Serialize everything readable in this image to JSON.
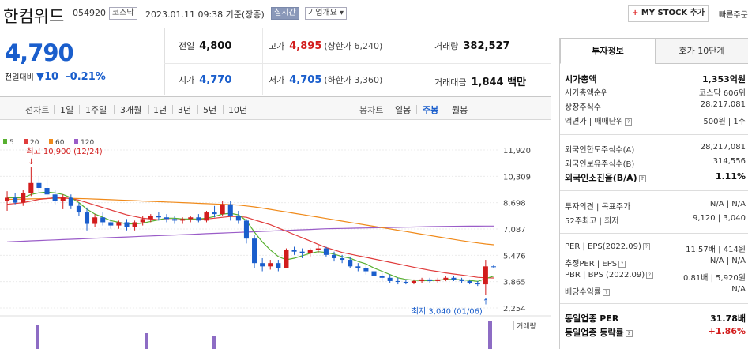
{
  "header": {
    "name": "한컴위드",
    "code": "054920",
    "market": "코스닥",
    "datetime": "2023.01.11 09:38 기준(장중)",
    "live": "실시간",
    "corp_info": "기업개요",
    "mystock": "MY STOCK 추가",
    "mystock_plus": "+",
    "quick": "빠른주문"
  },
  "summary": {
    "price": "4,790",
    "change_label": "전일대비",
    "change_amount": "10",
    "change_pct": "-0.21%",
    "prev_label": "전일",
    "prev": "4,800",
    "high_label": "고가",
    "high": "4,895",
    "upper_limit": "(상한가 6,240)",
    "volume_label": "거래량",
    "volume": "382,527",
    "open_label": "시가",
    "open": "4,770",
    "low_label": "저가",
    "low": "4,705",
    "lower_limit": "(하한가 3,360)",
    "amount_label": "거래대금",
    "amount": "1,844 백만"
  },
  "periods": {
    "label": "선차트",
    "items": [
      "1일",
      "1주일",
      "3개월",
      "1년",
      "3년",
      "5년",
      "10년"
    ],
    "candle_label": "봉차트",
    "candles": [
      "일봉",
      "주봉",
      "월봉"
    ],
    "candle_selected": "주봉"
  },
  "colors": {
    "up": "#d21c1c",
    "down": "#1a5ecc",
    "ma5": "#58b030",
    "ma20": "#e03c3c",
    "ma60": "#f08a1a",
    "ma120": "#9a5cc8"
  },
  "chart_data": {
    "type": "candlestick",
    "interval": "weekly",
    "legend": [
      "5",
      "20",
      "60",
      "120"
    ],
    "y_ticks": [
      11920,
      10309,
      8698,
      7087,
      5476,
      3865,
      2254
    ],
    "ylim": [
      2254,
      11920
    ],
    "annotations": {
      "high_label": "최고 10,900 (12/24)",
      "low_label": "최저 3,040 (01/06)"
    },
    "volume_label": "거래량",
    "candles": [
      [
        8800,
        9400,
        8200,
        9000
      ],
      [
        9000,
        9300,
        8600,
        8700
      ],
      [
        8700,
        9500,
        8500,
        9300
      ],
      [
        9300,
        10900,
        9100,
        9900
      ],
      [
        9900,
        10300,
        9300,
        9600
      ],
      [
        9600,
        10100,
        9000,
        9200
      ],
      [
        9200,
        9500,
        8600,
        8800
      ],
      [
        8800,
        9200,
        8300,
        9000
      ],
      [
        9000,
        9200,
        8300,
        8500
      ],
      [
        8500,
        8700,
        7900,
        8100
      ],
      [
        8100,
        8400,
        7000,
        7400
      ],
      [
        7400,
        8000,
        7200,
        7800
      ],
      [
        7800,
        8100,
        7300,
        7500
      ],
      [
        7500,
        7700,
        7100,
        7300
      ],
      [
        7300,
        7600,
        7100,
        7500
      ],
      [
        7500,
        7700,
        7000,
        7200
      ],
      [
        7200,
        7600,
        7000,
        7500
      ],
      [
        7500,
        7900,
        7300,
        7700
      ],
      [
        7700,
        8000,
        7500,
        7900
      ],
      [
        7900,
        8100,
        7600,
        7800
      ],
      [
        7800,
        8000,
        7500,
        7700
      ],
      [
        7700,
        7900,
        7400,
        7600
      ],
      [
        7600,
        7800,
        7400,
        7700
      ],
      [
        7700,
        7900,
        7500,
        7800
      ],
      [
        7800,
        8000,
        7500,
        7600
      ],
      [
        7600,
        8200,
        7500,
        8100
      ],
      [
        8100,
        8500,
        7800,
        8000
      ],
      [
        8000,
        8800,
        7900,
        8600
      ],
      [
        8600,
        8800,
        7600,
        7900
      ],
      [
        7900,
        8200,
        7400,
        7600
      ],
      [
        7600,
        7700,
        6200,
        6500
      ],
      [
        6500,
        6700,
        4700,
        5000
      ],
      [
        5000,
        5300,
        4500,
        4800
      ],
      [
        4800,
        5200,
        4600,
        5000
      ],
      [
        5000,
        5200,
        4500,
        4700
      ],
      [
        4700,
        5900,
        4700,
        5800
      ],
      [
        5800,
        6000,
        5500,
        5700
      ],
      [
        5700,
        5900,
        5300,
        5600
      ],
      [
        5600,
        5900,
        5400,
        5800
      ],
      [
        5800,
        6100,
        5600,
        5900
      ],
      [
        5900,
        6000,
        5400,
        5500
      ],
      [
        5500,
        5700,
        5100,
        5300
      ],
      [
        5300,
        5500,
        5000,
        5200
      ],
      [
        5200,
        5400,
        4700,
        4800
      ],
      [
        4800,
        5000,
        4500,
        4700
      ],
      [
        4700,
        4900,
        4300,
        4500
      ],
      [
        4500,
        4600,
        4100,
        4200
      ],
      [
        4200,
        4400,
        3900,
        4100
      ],
      [
        4100,
        4300,
        3800,
        3900
      ],
      [
        3900,
        4100,
        3700,
        3850
      ],
      [
        3850,
        4000,
        3700,
        3800
      ],
      [
        3800,
        4000,
        3700,
        3900
      ],
      [
        3900,
        4100,
        3800,
        4000
      ],
      [
        4000,
        4100,
        3800,
        3900
      ],
      [
        3900,
        4100,
        3800,
        4000
      ],
      [
        4000,
        4200,
        3900,
        4100
      ],
      [
        4100,
        4200,
        3900,
        4000
      ],
      [
        4000,
        4100,
        3800,
        3900
      ],
      [
        3900,
        4000,
        3700,
        3800
      ],
      [
        3800,
        3900,
        3600,
        3700
      ],
      [
        3700,
        5200,
        3040,
        4800
      ],
      [
        4800,
        4900,
        4700,
        4790
      ]
    ],
    "ma5": [
      9000,
      9000,
      9000,
      9200,
      9300,
      9350,
      9300,
      9200,
      9000,
      8700,
      8300,
      8000,
      7800,
      7600,
      7500,
      7400,
      7400,
      7450,
      7550,
      7650,
      7750,
      7750,
      7700,
      7700,
      7700,
      7750,
      7850,
      8000,
      8050,
      7950,
      7600,
      6900,
      6300,
      5800,
      5400,
      5200,
      5300,
      5450,
      5600,
      5700,
      5650,
      5550,
      5400,
      5300,
      5100,
      4950,
      4700,
      4500,
      4300,
      4100,
      4000,
      3950,
      3930,
      3920,
      3950,
      4000,
      4000,
      3980,
      3940,
      3880,
      4050,
      4200
    ],
    "ma20": [
      8600,
      8650,
      8700,
      8800,
      8900,
      8950,
      9000,
      9000,
      8950,
      8850,
      8700,
      8550,
      8400,
      8250,
      8100,
      7950,
      7850,
      7750,
      7700,
      7650,
      7650,
      7650,
      7650,
      7650,
      7650,
      7700,
      7750,
      7800,
      7850,
      7850,
      7800,
      7650,
      7500,
      7350,
      7150,
      6950,
      6750,
      6550,
      6350,
      6150,
      5950,
      5800,
      5650,
      5550,
      5450,
      5350,
      5250,
      5150,
      5050,
      4950,
      4850,
      4750,
      4650,
      4560,
      4480,
      4400,
      4330,
      4270,
      4200,
      4130,
      4100,
      4090
    ],
    "ma60": [
      8900,
      8910,
      8920,
      8930,
      8940,
      8950,
      8960,
      8960,
      8960,
      8950,
      8940,
      8920,
      8900,
      8880,
      8860,
      8840,
      8820,
      8800,
      8780,
      8760,
      8740,
      8720,
      8700,
      8680,
      8660,
      8640,
      8620,
      8600,
      8580,
      8550,
      8500,
      8440,
      8370,
      8290,
      8210,
      8130,
      8050,
      7970,
      7890,
      7810,
      7730,
      7650,
      7570,
      7490,
      7410,
      7330,
      7250,
      7170,
      7090,
      7010,
      6930,
      6850,
      6770,
      6690,
      6610,
      6530,
      6450,
      6370,
      6300,
      6230,
      6170,
      6120
    ],
    "ma120": [
      6300,
      6320,
      6340,
      6360,
      6380,
      6400,
      6420,
      6440,
      6460,
      6480,
      6500,
      6520,
      6540,
      6560,
      6580,
      6600,
      6620,
      6640,
      6660,
      6680,
      6700,
      6720,
      6740,
      6760,
      6780,
      6800,
      6820,
      6840,
      6860,
      6880,
      6900,
      6920,
      6940,
      6960,
      6980,
      7000,
      7020,
      7040,
      7060,
      7080,
      7100,
      7110,
      7120,
      7130,
      7140,
      7150,
      7160,
      7170,
      7180,
      7190,
      7200,
      7210,
      7220,
      7230,
      7240,
      7245,
      7250,
      7255,
      7260,
      7262,
      7264,
      7265
    ]
  },
  "right_panel": {
    "tabs": [
      "투자정보",
      "호가 10단계"
    ],
    "rows": [
      {
        "label": "시가총액",
        "value": "1,353억원"
      },
      {
        "label": "시가총액순위",
        "value": "코스닥 606위"
      },
      {
        "label": "상장주식수",
        "value": "28,217,081"
      },
      {
        "label": "액면가 | 매매단위",
        "value": "500원 | 1주"
      },
      {
        "label": "외국인한도주식수(A)",
        "value": "28,217,081"
      },
      {
        "label": "외국인보유주식수(B)",
        "value": "314,556"
      },
      {
        "label": "외국인소진율(B/A)",
        "value": "1.11%"
      },
      {
        "label": "투자의견 | 목표주가",
        "value": "N/A | N/A"
      },
      {
        "label": "52주최고 | 최저",
        "value": "9,120 | 3,040"
      },
      {
        "label": "PER | EPS(2022.09)",
        "value": "11.57배 | 414원"
      },
      {
        "label": "추정PER | EPS",
        "value": "N/A | N/A"
      },
      {
        "label": "PBR | BPS (2022.09)",
        "value": "0.81배 | 5,920원"
      },
      {
        "label": "배당수익률",
        "value": "N/A"
      },
      {
        "label": "동일업종 PER",
        "value": "31.78배"
      },
      {
        "label": "동일업종 등락률",
        "value": "+1.86%"
      }
    ]
  }
}
